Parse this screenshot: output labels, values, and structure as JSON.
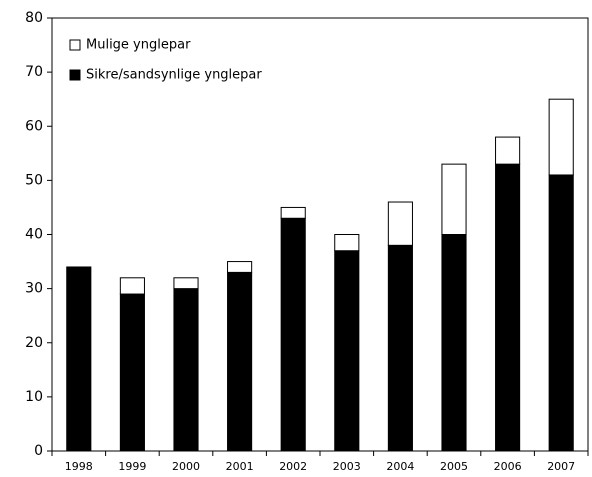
{
  "chart_data": {
    "type": "bar",
    "stacked": true,
    "categories": [
      "1998",
      "1999",
      "2000",
      "2001",
      "2002",
      "2003",
      "2004",
      "2005",
      "2006",
      "2007"
    ],
    "series": [
      {
        "name": "Sikre/sandsynlige ynglepar",
        "color": "#000000",
        "values": [
          34,
          29,
          30,
          33,
          43,
          37,
          38,
          40,
          53,
          51
        ]
      },
      {
        "name": "Mulige ynglepar",
        "color": "#ffffff",
        "values": [
          0,
          3,
          2,
          2,
          2,
          3,
          8,
          13,
          5,
          14
        ]
      }
    ],
    "ylim": [
      0,
      80
    ],
    "yticks": [
      0,
      10,
      20,
      30,
      40,
      50,
      60,
      70,
      80
    ],
    "legend": "top-left"
  }
}
